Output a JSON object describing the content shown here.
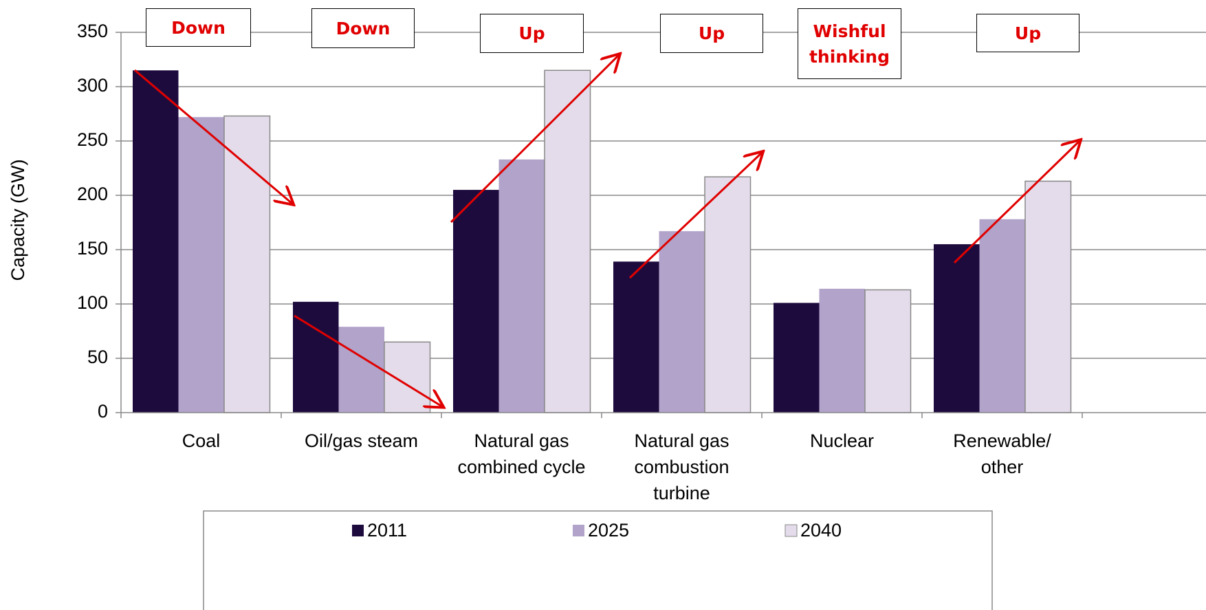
{
  "chart_data": {
    "type": "bar",
    "y_label": "Capacity (GW)",
    "categories": [
      "Coal",
      "Oil/gas steam",
      "Natural gas combined cycle",
      "Natural gas combustion turbine",
      "Nuclear",
      "Renewable/ other"
    ],
    "series": [
      {
        "name": "2011",
        "color": "#1e0b3e",
        "values": [
          315,
          102,
          205,
          139,
          101,
          155
        ]
      },
      {
        "name": "2025",
        "color": "#b1a3c9",
        "values": [
          272,
          79,
          233,
          167,
          114,
          178
        ]
      },
      {
        "name": "2040",
        "color": "#e4dcea",
        "values": [
          273,
          65,
          315,
          217,
          113,
          213
        ]
      }
    ],
    "ylim": [
      0,
      350
    ],
    "yticks": [
      0,
      50,
      100,
      150,
      200,
      250,
      300,
      350
    ],
    "grid": true,
    "legend": "bottom",
    "annotations": [
      "Down",
      "Down",
      "Up",
      "Up",
      "Wishful thinking",
      "Up"
    ]
  }
}
